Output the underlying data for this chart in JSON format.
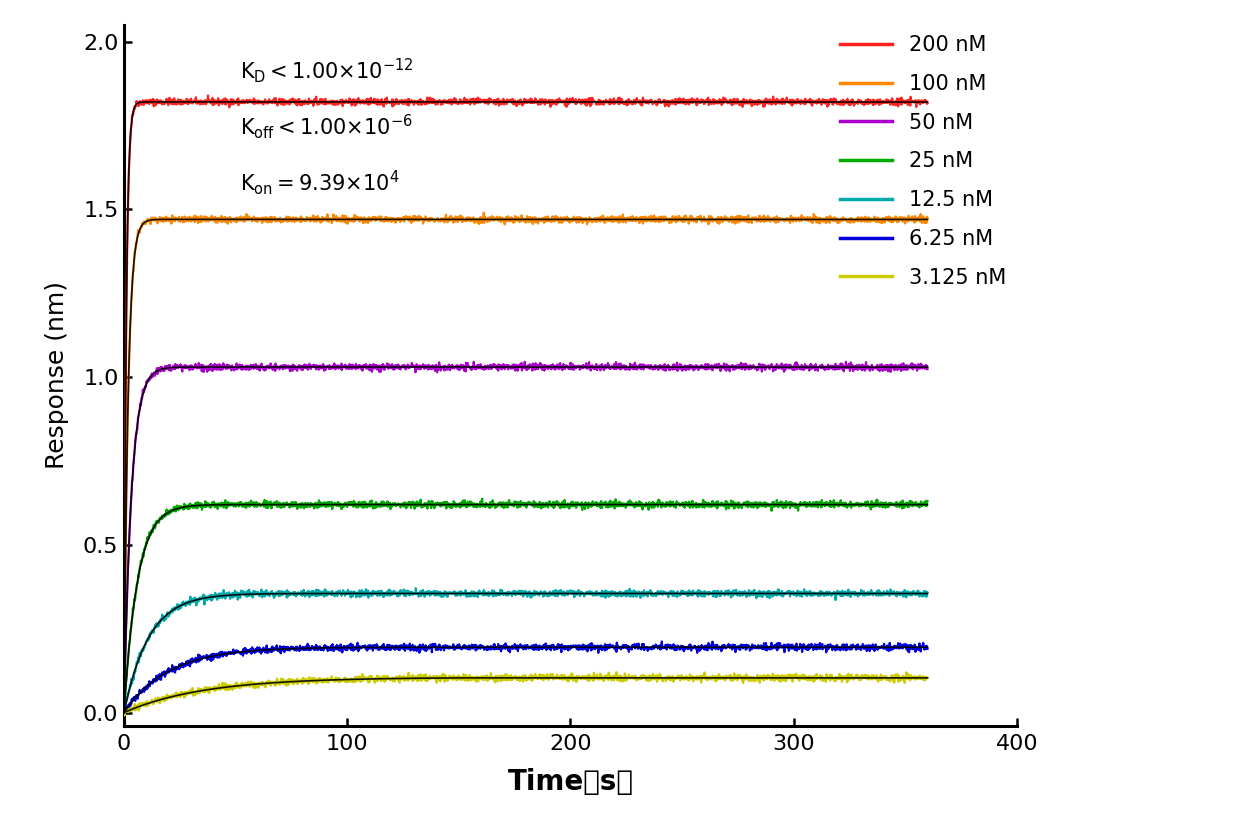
{
  "xlabel": "Time（s）",
  "ylabel": "Response (nm)",
  "xlim": [
    0,
    400
  ],
  "ylim": [
    -0.04,
    2.05
  ],
  "yticks": [
    0.0,
    0.5,
    1.0,
    1.5,
    2.0
  ],
  "xticks": [
    0,
    100,
    200,
    300,
    400
  ],
  "curves": [
    {
      "label": "200 nM",
      "color": "#FF2222",
      "conc_nM": 200,
      "plateau": 1.82,
      "kobs_scale": 1.0
    },
    {
      "label": "100 nM",
      "color": "#FF8800",
      "conc_nM": 100,
      "plateau": 1.47,
      "kobs_scale": 0.55
    },
    {
      "label": "50 nM",
      "color": "#AA00CC",
      "conc_nM": 50,
      "plateau": 1.03,
      "kobs_scale": 0.3
    },
    {
      "label": "25 nM",
      "color": "#00AA00",
      "conc_nM": 25,
      "plateau": 0.62,
      "kobs_scale": 0.165
    },
    {
      "label": "12.5 nM",
      "color": "#00AAAA",
      "conc_nM": 12.5,
      "plateau": 0.355,
      "kobs_scale": 0.09
    },
    {
      "label": "6.25 nM",
      "color": "#0000DD",
      "conc_nM": 6.25,
      "plateau": 0.195,
      "kobs_scale": 0.05
    },
    {
      "label": "3.125 nM",
      "color": "#CCCC00",
      "conc_nM": 3.125,
      "plateau": 0.105,
      "kobs_scale": 0.028
    }
  ],
  "background_color": "#FFFFFF",
  "fit_color": "#000000",
  "noise_amplitude": 0.005,
  "t_assoc_end": 150,
  "t_end": 360,
  "koff": 1e-06
}
